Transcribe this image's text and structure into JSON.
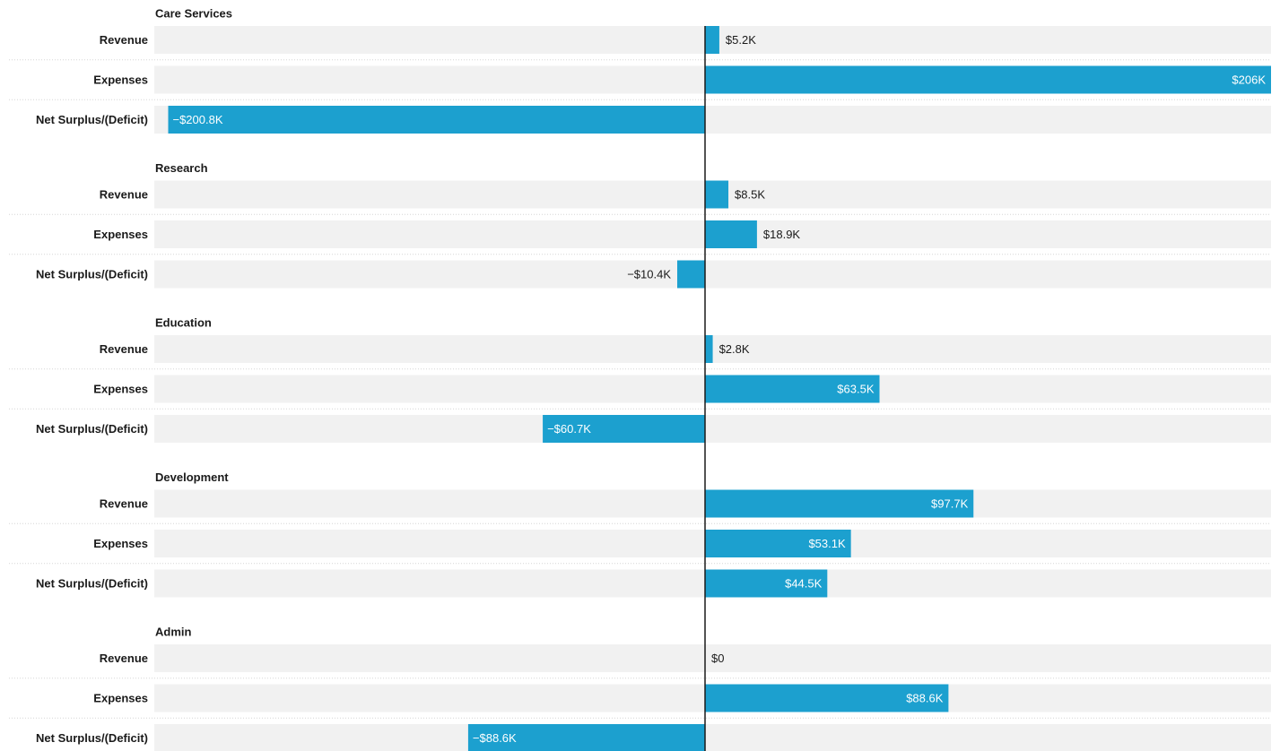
{
  "colors": {
    "bar": "#1ca0cf",
    "track": "#f1f1f1",
    "text_dark": "#1a1a1a",
    "text_on_bar": "#ffffff",
    "zero_line": "#1a1a1a"
  },
  "chart_data": {
    "type": "bar",
    "orientation": "horizontal",
    "diverging": true,
    "units": "USD thousands",
    "xlim": [
      -206,
      206
    ],
    "grid": false,
    "legend": "none",
    "groups": [
      {
        "name": "Care Services",
        "rows": [
          {
            "label": "Revenue",
            "value": 5.2,
            "value_label": "$5.2K"
          },
          {
            "label": "Expenses",
            "value": 206,
            "value_label": "$206K"
          },
          {
            "label": "Net Surplus/(Deficit)",
            "value": -200.8,
            "value_label": "−$200.8K"
          }
        ]
      },
      {
        "name": "Research",
        "rows": [
          {
            "label": "Revenue",
            "value": 8.5,
            "value_label": "$8.5K"
          },
          {
            "label": "Expenses",
            "value": 18.9,
            "value_label": "$18.9K"
          },
          {
            "label": "Net Surplus/(Deficit)",
            "value": -10.4,
            "value_label": "−$10.4K"
          }
        ]
      },
      {
        "name": "Education",
        "rows": [
          {
            "label": "Revenue",
            "value": 2.8,
            "value_label": "$2.8K"
          },
          {
            "label": "Expenses",
            "value": 63.5,
            "value_label": "$63.5K"
          },
          {
            "label": "Net Surplus/(Deficit)",
            "value": -60.7,
            "value_label": "−$60.7K"
          }
        ]
      },
      {
        "name": "Development",
        "rows": [
          {
            "label": "Revenue",
            "value": 97.7,
            "value_label": "$97.7K"
          },
          {
            "label": "Expenses",
            "value": 53.1,
            "value_label": "$53.1K"
          },
          {
            "label": "Net Surplus/(Deficit)",
            "value": 44.5,
            "value_label": "$44.5K"
          }
        ]
      },
      {
        "name": "Admin",
        "rows": [
          {
            "label": "Revenue",
            "value": 0,
            "value_label": "$0"
          },
          {
            "label": "Expenses",
            "value": 88.6,
            "value_label": "$88.6K"
          },
          {
            "label": "Net Surplus/(Deficit)",
            "value": -88.6,
            "value_label": "−$88.6K"
          }
        ]
      }
    ]
  }
}
